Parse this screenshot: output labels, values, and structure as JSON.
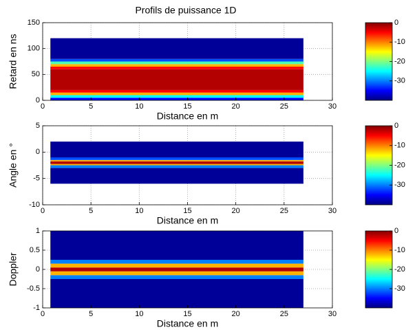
{
  "chart_data": [
    {
      "type": "heatmap",
      "title": "Profils de puissance 1D",
      "xlabel": "Distance en m",
      "ylabel": "Retard en ns",
      "xlim": [
        0,
        30
      ],
      "ylim": [
        0,
        150
      ],
      "xticks": [
        0,
        5,
        10,
        15,
        20,
        25,
        30
      ],
      "yticks": [
        0,
        50,
        100,
        150
      ],
      "image_x": [
        0.8,
        27
      ],
      "y_edges": [
        0,
        5,
        10,
        15,
        20,
        60,
        65,
        70,
        75,
        80,
        120
      ],
      "levels": [
        -35,
        -25,
        -12,
        -5,
        -2,
        -5,
        -12,
        -22,
        -32,
        -39
      ],
      "colormap": "jet",
      "clim": [
        -40,
        0
      ],
      "cbar_ticks": [
        0,
        -10,
        -20,
        -30
      ],
      "grid": true
    },
    {
      "type": "heatmap",
      "xlabel": "Distance en m",
      "ylabel": "Angle en °",
      "xlim": [
        0,
        30
      ],
      "ylim": [
        -10,
        5
      ],
      "xticks": [
        0,
        5,
        10,
        15,
        20,
        25,
        30
      ],
      "yticks": [
        -10,
        -5,
        0,
        5
      ],
      "image_x": [
        0.8,
        27
      ],
      "y_edges": [
        -6,
        -3,
        -2.5,
        -2.25,
        -1.75,
        -1.5,
        -1,
        2
      ],
      "levels": [
        -39,
        -30,
        -12,
        -2,
        -12,
        -32,
        -39
      ],
      "colormap": "jet",
      "clim": [
        -40,
        0
      ],
      "cbar_ticks": [
        0,
        -10,
        -20,
        -30
      ],
      "grid": true
    },
    {
      "type": "heatmap",
      "xlabel": "Distance en m",
      "ylabel": "Doppler",
      "xlim": [
        0,
        30
      ],
      "ylim": [
        -1,
        1
      ],
      "xticks": [
        0,
        5,
        10,
        15,
        20,
        25,
        30
      ],
      "yticks": [
        -1,
        -0.5,
        0,
        0.5,
        1
      ],
      "image_x": [
        0.8,
        27
      ],
      "y_edges": [
        -1,
        -0.25,
        -0.15,
        -0.05,
        0.05,
        0.15,
        0.25,
        1
      ],
      "levels": [
        -39,
        -30,
        -12,
        -2,
        -12,
        -30,
        -39
      ],
      "colormap": "jet",
      "clim": [
        -40,
        0
      ],
      "cbar_ticks": [
        0,
        -10,
        -20,
        -30
      ],
      "grid": true
    }
  ]
}
